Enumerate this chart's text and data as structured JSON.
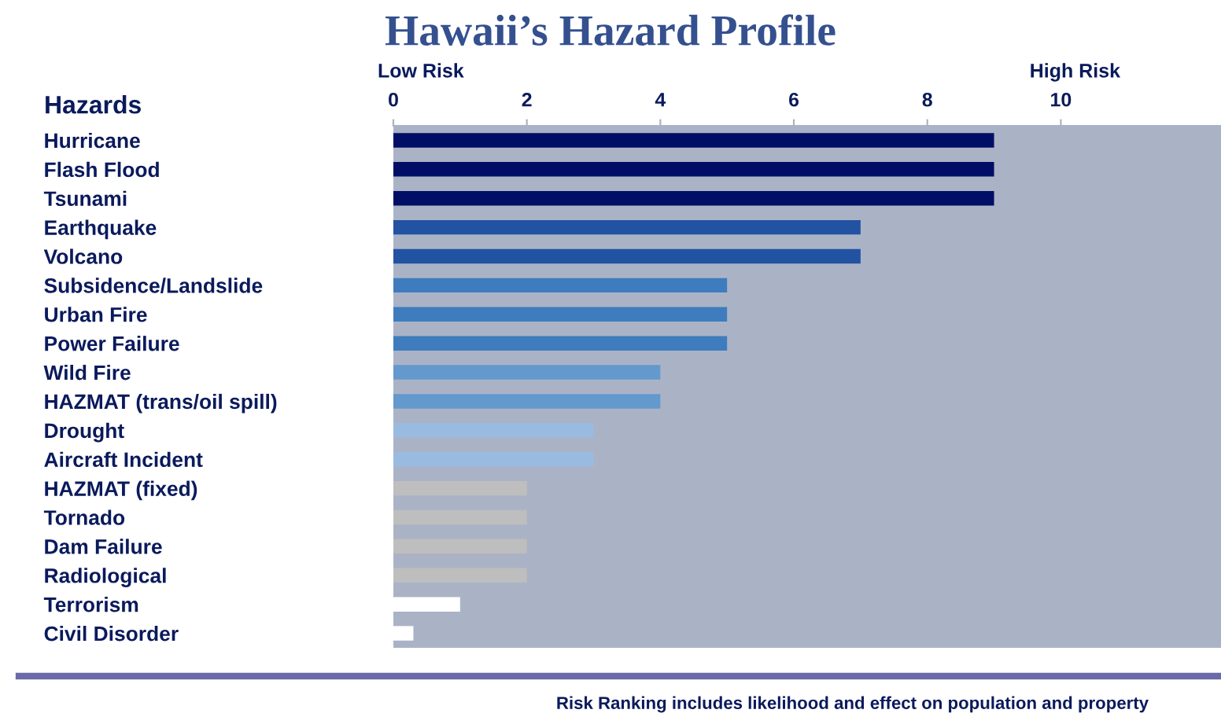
{
  "chart_data": {
    "type": "bar",
    "orientation": "horizontal",
    "title": "Hawaii’s Hazard Profile",
    "ylabel": "Hazards",
    "categories": [
      "Hurricane",
      "Flash Flood",
      "Tsunami",
      "Earthquake",
      "Volcano",
      "Subsidence/Landslide",
      "Urban Fire",
      "Power Failure",
      "Wild Fire",
      "HAZMAT (trans/oil spill)",
      "Drought",
      "Aircraft Incident",
      "HAZMAT (fixed)",
      "Tornado",
      "Dam Failure",
      "Radiological",
      "Terrorism",
      "Civil Disorder"
    ],
    "values": [
      9,
      9,
      9,
      7,
      7,
      5,
      5,
      5,
      4,
      4,
      3,
      3,
      2,
      2,
      2,
      2,
      1,
      0.3
    ],
    "colors": [
      "#000e66",
      "#000e66",
      "#000e66",
      "#2252a2",
      "#2252a2",
      "#3e7cbe",
      "#3e7cbe",
      "#3e7cbe",
      "#6399cc",
      "#6399cc",
      "#9abbe0",
      "#9abbe0",
      "#bebebe",
      "#bebebe",
      "#bebebe",
      "#bebebe",
      "#ffffff",
      "#ffffff"
    ],
    "xlim": [
      0,
      12.4
    ],
    "xticks": [
      0,
      2,
      4,
      6,
      8,
      10
    ],
    "grid": false,
    "annotations": [
      "Low Risk",
      "High Risk",
      "Risk Ranking includes likelihood and effect on population and property"
    ]
  }
}
